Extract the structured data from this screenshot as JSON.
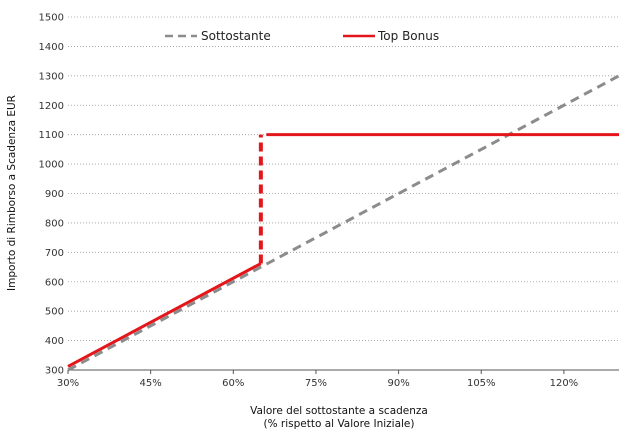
{
  "chart_data": {
    "type": "line",
    "xlabel_lines": [
      "Valore del sottostante a scadenza",
      "(% rispetto al Valore Iniziale)"
    ],
    "ylabel": "Importo di Rimborso a Scadenza EUR",
    "xlim": [
      30,
      130
    ],
    "ylim": [
      300,
      1500
    ],
    "x_ticks": [
      30,
      45,
      60,
      75,
      90,
      105,
      120
    ],
    "x_tick_labels": [
      "30%",
      "45%",
      "60%",
      "75%",
      "90%",
      "105%",
      "120%"
    ],
    "y_ticks": [
      300,
      400,
      500,
      600,
      700,
      800,
      900,
      1000,
      1100,
      1200,
      1300,
      1400,
      1500
    ],
    "y_tick_labels": [
      "300",
      "400",
      "500",
      "600",
      "700",
      "800",
      "900",
      "1000",
      "1100",
      "1200",
      "1300",
      "1400",
      "1500"
    ],
    "grid": "horizontal dotted",
    "legend_position": "top-center",
    "series": [
      {
        "name": "Sottostante",
        "color": "#8c8c8c",
        "style": "dashed",
        "points": [
          [
            30,
            300
          ],
          [
            130,
            1300
          ]
        ]
      },
      {
        "name": "Top Bonus",
        "color": "#e3161b",
        "style": "solid",
        "segments": [
          {
            "style": "solid",
            "points": [
              [
                30,
                312
              ],
              [
                65,
                662
              ]
            ]
          },
          {
            "style": "dashed",
            "points": [
              [
                65,
                662
              ],
              [
                65,
                1100
              ]
            ]
          },
          {
            "style": "solid",
            "points": [
              [
                66,
                1100
              ],
              [
                130,
                1100
              ]
            ]
          }
        ]
      }
    ]
  }
}
